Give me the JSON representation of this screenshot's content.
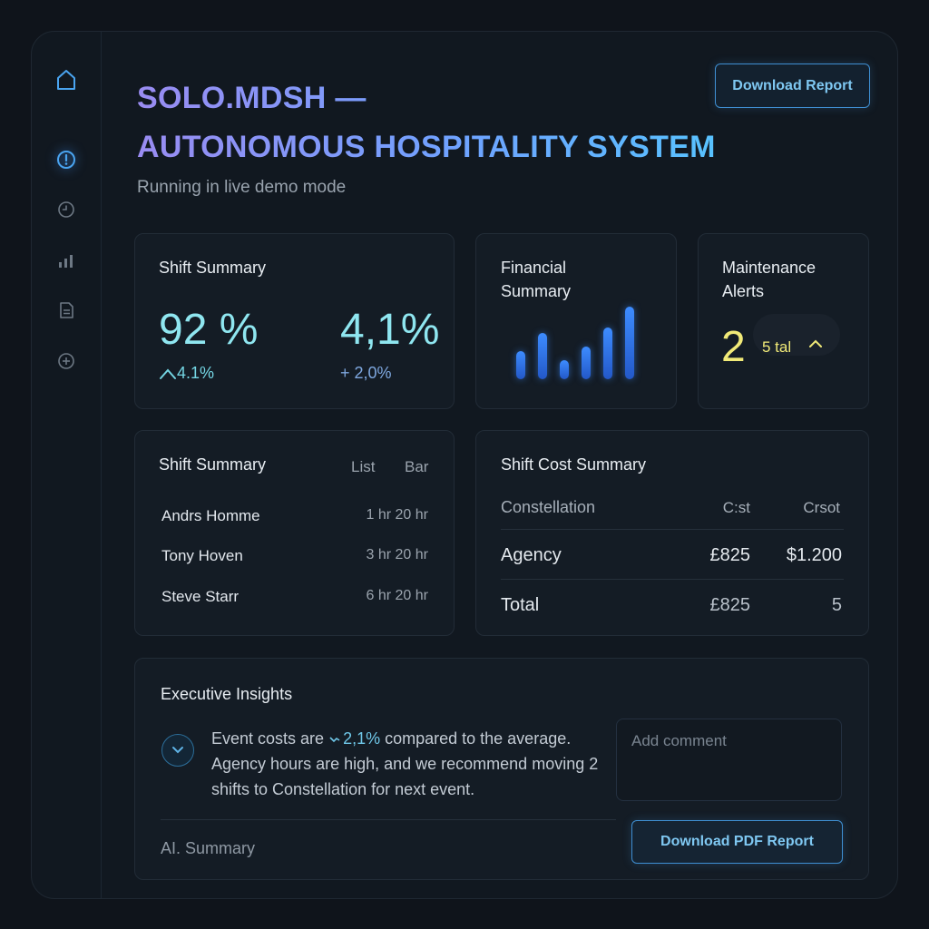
{
  "sidebar": {
    "items": [
      {
        "icon": "home-icon"
      },
      {
        "icon": "alert-icon"
      },
      {
        "icon": "clock-icon"
      },
      {
        "icon": "bar-chart-icon"
      },
      {
        "icon": "document-icon"
      },
      {
        "icon": "add-icon"
      }
    ]
  },
  "header": {
    "title_line1": "SOLO.MDSH —",
    "title_line2": "AUTONOMOUS HOSPITALITY SYSTEM",
    "subtitle": "Running in live demo mode",
    "download_report_label": "Download Report"
  },
  "shift_summary_card": {
    "title": "Shift Summary",
    "metric1": {
      "value": "92 %",
      "delta": "4.1%"
    },
    "metric2": {
      "value": "4,1%",
      "delta": "+ 2,0%"
    }
  },
  "financial_card": {
    "title_line1": "Financial",
    "title_line2": "Summary",
    "bar_values": [
      3,
      5,
      2,
      3.5,
      5.6,
      7.8
    ]
  },
  "maintenance_card": {
    "title_line1": "Maintenance",
    "title_line2": "Alerts",
    "count": "2",
    "label": "5 tal"
  },
  "shift_list_card": {
    "title": "Shift Summary",
    "tabs": [
      "List",
      "Bar"
    ],
    "rows": [
      {
        "name": "Andrs Homme",
        "hours": "1 hr 20 hr"
      },
      {
        "name": "Tony Hoven",
        "hours": "3 hr 20 hr"
      },
      {
        "name": "Steve Starr",
        "hours": "6 hr 20 hr"
      }
    ]
  },
  "cost_card": {
    "title": "Shift Cost Summary",
    "headers": [
      "Constellation",
      "C:st",
      "Crsot"
    ],
    "rows": [
      {
        "label": "Agency",
        "cost": "£825",
        "rate": "$1.200"
      },
      {
        "label": "Total",
        "cost": "£825",
        "rate": "5"
      }
    ]
  },
  "insights": {
    "title": "Executive Insights",
    "text_before": "Event costs are ",
    "highlight": "2,1%",
    "text_after": " compared to the average. Agency hours are high, and we recommend moving 2 shifts to Constellation for next event.",
    "comment_placeholder": "Add comment",
    "footer_label": "AI. Summary",
    "download_pdf_label": "Download PDF Report"
  },
  "colors": {
    "accent": "#3f8fd2",
    "metric": "#8fe6f0",
    "alert": "#f1ea78",
    "bar": "#3d8cff"
  }
}
